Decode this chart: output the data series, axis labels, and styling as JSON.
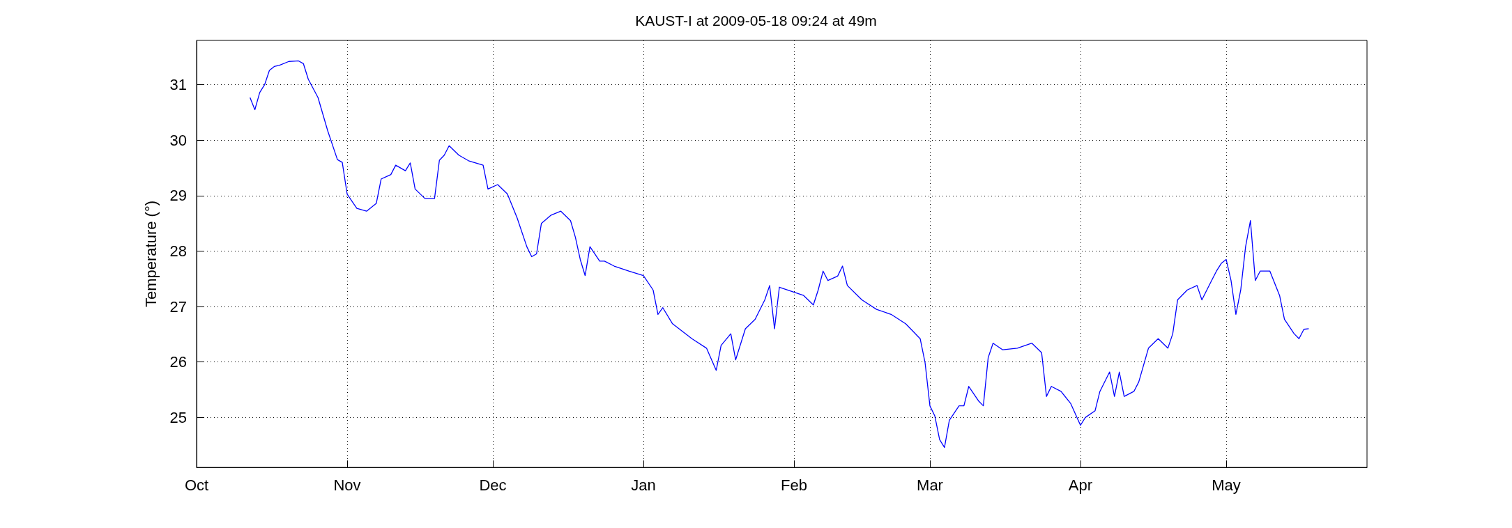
{
  "chart_data": {
    "type": "line",
    "title": "KAUST-I at 2009-05-18 09:24 at 49m",
    "ylabel": "Temperature (°)",
    "x": [
      "2008-10-12",
      "2008-10-13",
      "2008-10-14",
      "2008-10-15",
      "2008-10-16",
      "2008-10-17",
      "2008-10-18",
      "2008-10-20",
      "2008-10-22",
      "2008-10-23",
      "2008-10-24",
      "2008-10-26",
      "2008-10-28",
      "2008-10-30",
      "2008-10-31",
      "2008-11-01",
      "2008-11-03",
      "2008-11-05",
      "2008-11-07",
      "2008-11-08",
      "2008-11-10",
      "2008-11-11",
      "2008-11-13",
      "2008-11-14",
      "2008-11-15",
      "2008-11-17",
      "2008-11-19",
      "2008-11-20",
      "2008-11-21",
      "2008-11-22",
      "2008-11-24",
      "2008-11-26",
      "2008-11-29",
      "2008-11-30",
      "2008-12-02",
      "2008-12-04",
      "2008-12-06",
      "2008-12-08",
      "2008-12-09",
      "2008-12-10",
      "2008-12-11",
      "2008-12-13",
      "2008-12-15",
      "2008-12-17",
      "2008-12-18",
      "2008-12-19",
      "2008-12-20",
      "2008-12-21",
      "2008-12-23",
      "2008-12-24",
      "2008-12-26",
      "2008-12-29",
      "2009-01-01",
      "2009-01-03",
      "2009-01-04",
      "2009-01-05",
      "2009-01-07",
      "2009-01-11",
      "2009-01-14",
      "2009-01-16",
      "2009-01-17",
      "2009-01-19",
      "2009-01-20",
      "2009-01-22",
      "2009-01-24",
      "2009-01-26",
      "2009-01-27",
      "2009-01-28",
      "2009-01-29",
      "2009-02-03",
      "2009-02-05",
      "2009-02-06",
      "2009-02-07",
      "2009-02-08",
      "2009-02-10",
      "2009-02-11",
      "2009-02-12",
      "2009-02-15",
      "2009-02-18",
      "2009-02-21",
      "2009-02-24",
      "2009-02-27",
      "2009-02-28",
      "2009-03-01",
      "2009-03-02",
      "2009-03-03",
      "2009-03-04",
      "2009-03-05",
      "2009-03-07",
      "2009-03-08",
      "2009-03-09",
      "2009-03-11",
      "2009-03-12",
      "2009-03-13",
      "2009-03-14",
      "2009-03-16",
      "2009-03-19",
      "2009-03-22",
      "2009-03-24",
      "2009-03-25",
      "2009-03-26",
      "2009-03-28",
      "2009-03-30",
      "2009-04-01",
      "2009-04-02",
      "2009-04-04",
      "2009-04-05",
      "2009-04-07",
      "2009-04-08",
      "2009-04-09",
      "2009-04-10",
      "2009-04-12",
      "2009-04-13",
      "2009-04-15",
      "2009-04-17",
      "2009-04-19",
      "2009-04-20",
      "2009-04-21",
      "2009-04-23",
      "2009-04-25",
      "2009-04-26",
      "2009-04-28",
      "2009-04-29",
      "2009-04-30",
      "2009-05-01",
      "2009-05-02",
      "2009-05-03",
      "2009-05-04",
      "2009-05-05",
      "2009-05-06",
      "2009-05-07",
      "2009-05-08",
      "2009-05-10",
      "2009-05-12",
      "2009-05-13",
      "2009-05-15",
      "2009-05-16",
      "2009-05-17",
      "2009-05-18"
    ],
    "series": [
      {
        "color": "#0000ff",
        "values": [
          30.77,
          30.55,
          30.86,
          31.0,
          31.26,
          31.33,
          31.35,
          31.42,
          31.43,
          31.38,
          31.1,
          30.77,
          30.17,
          29.65,
          29.6,
          29.03,
          28.77,
          28.72,
          28.86,
          29.3,
          29.38,
          29.55,
          29.45,
          29.59,
          29.12,
          28.95,
          28.95,
          29.64,
          29.73,
          29.9,
          29.73,
          29.63,
          29.55,
          29.12,
          29.2,
          29.03,
          28.6,
          28.08,
          27.9,
          27.95,
          28.5,
          28.65,
          28.72,
          28.55,
          28.25,
          27.85,
          27.56,
          28.08,
          27.82,
          27.82,
          27.73,
          27.64,
          27.56,
          27.3,
          26.86,
          26.98,
          26.69,
          26.42,
          26.25,
          25.85,
          26.3,
          26.51,
          26.04,
          26.6,
          26.77,
          27.12,
          27.38,
          26.6,
          27.35,
          27.2,
          27.03,
          27.3,
          27.64,
          27.47,
          27.55,
          27.73,
          27.38,
          27.12,
          26.95,
          26.86,
          26.69,
          26.42,
          25.99,
          25.21,
          25.03,
          24.6,
          24.46,
          24.95,
          25.21,
          25.21,
          25.56,
          25.3,
          25.21,
          26.08,
          26.34,
          26.22,
          26.25,
          26.34,
          26.17,
          25.38,
          25.56,
          25.47,
          25.25,
          24.86,
          25.0,
          25.12,
          25.47,
          25.82,
          25.38,
          25.82,
          25.38,
          25.47,
          25.64,
          26.25,
          26.42,
          26.25,
          26.51,
          27.12,
          27.3,
          27.38,
          27.12,
          27.47,
          27.64,
          27.78,
          27.85,
          27.47,
          26.86,
          27.3,
          28.08,
          28.55,
          27.47,
          27.64,
          27.64,
          27.2,
          26.77,
          26.51,
          26.42,
          26.59,
          26.6
        ]
      }
    ],
    "xlim": [
      "2008-10-01",
      "2009-05-30"
    ],
    "xticks": [
      {
        "value": "2008-10-01",
        "label": "Oct"
      },
      {
        "value": "2008-11-01",
        "label": "Nov"
      },
      {
        "value": "2008-12-01",
        "label": "Dec"
      },
      {
        "value": "2009-01-01",
        "label": "Jan"
      },
      {
        "value": "2009-02-01",
        "label": "Feb"
      },
      {
        "value": "2009-03-01",
        "label": "Mar"
      },
      {
        "value": "2009-04-01",
        "label": "Apr"
      },
      {
        "value": "2009-05-01",
        "label": "May"
      }
    ],
    "ylim": [
      24.1,
      31.8
    ],
    "yticks": [
      25,
      26,
      27,
      28,
      29,
      30,
      31
    ],
    "grid": true,
    "marker": "none",
    "line_style": "solid"
  }
}
